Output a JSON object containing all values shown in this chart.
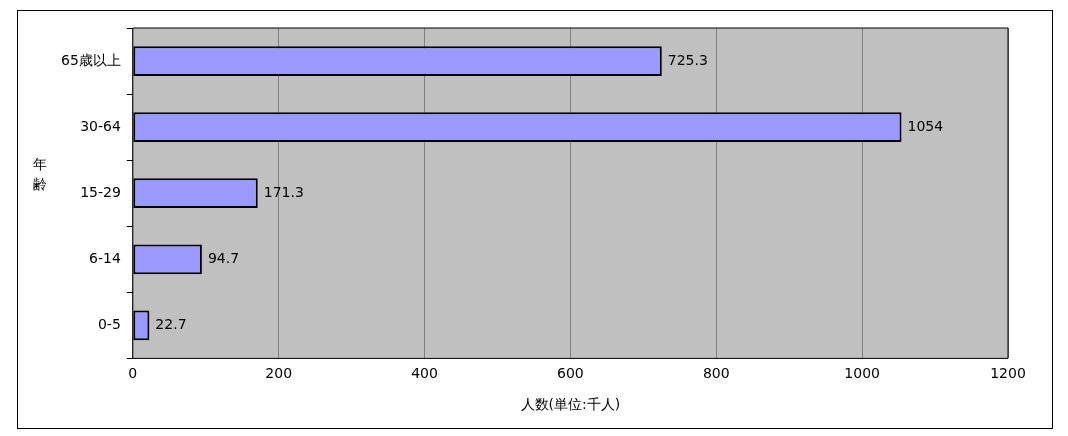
{
  "chart_data": {
    "type": "bar",
    "orientation": "horizontal",
    "xlabel": "人数(単位:千人)",
    "ylabel": "年齢",
    "categories": [
      "65歳以上",
      "30-64",
      "15-29",
      "6-14",
      "0-5"
    ],
    "values": [
      725.3,
      1054,
      171.3,
      94.7,
      22.7
    ],
    "color": "#9999ff",
    "xlim": [
      0,
      1200
    ],
    "xticks": [
      0,
      200,
      400,
      600,
      800,
      1000,
      1200
    ],
    "grid": "x",
    "legend": false,
    "data_labels": true
  }
}
